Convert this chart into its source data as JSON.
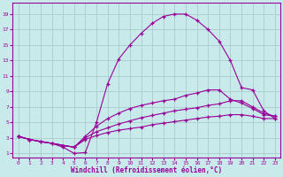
{
  "xlabel": "Windchill (Refroidissement éolien,°C)",
  "bg_color": "#c8eaea",
  "grid_color": "#aacccc",
  "line_color": "#990099",
  "xlim": [
    -0.5,
    23.5
  ],
  "ylim": [
    0.5,
    20.5
  ],
  "xticks": [
    0,
    1,
    2,
    3,
    4,
    5,
    6,
    7,
    8,
    9,
    10,
    11,
    12,
    13,
    14,
    15,
    16,
    17,
    18,
    19,
    20,
    21,
    22,
    23
  ],
  "yticks": [
    1,
    3,
    5,
    7,
    9,
    11,
    13,
    15,
    17,
    19
  ],
  "curve1_x": [
    0,
    1,
    2,
    3,
    4,
    5,
    6,
    7,
    8,
    9,
    10,
    11,
    12,
    13,
    14,
    15,
    16,
    17,
    18,
    19,
    20,
    21,
    22,
    23
  ],
  "curve1_y": [
    3.2,
    2.8,
    2.5,
    2.3,
    1.8,
    1.0,
    1.1,
    5.0,
    10.0,
    13.2,
    15.0,
    16.5,
    17.8,
    18.7,
    19.0,
    19.0,
    18.2,
    17.0,
    15.5,
    13.0,
    9.5,
    9.2,
    6.5,
    5.5
  ],
  "curve2_x": [
    0,
    1,
    2,
    3,
    4,
    5,
    6,
    7,
    8,
    9,
    10,
    11,
    12,
    13,
    14,
    15,
    16,
    17,
    18,
    19,
    20,
    21,
    22,
    23
  ],
  "curve2_y": [
    3.2,
    2.8,
    2.5,
    2.3,
    2.0,
    1.8,
    3.2,
    4.5,
    5.5,
    6.2,
    6.8,
    7.2,
    7.5,
    7.8,
    8.0,
    8.5,
    8.8,
    9.2,
    9.2,
    8.0,
    7.5,
    6.8,
    6.0,
    5.8
  ],
  "curve3_x": [
    0,
    1,
    5,
    6,
    7,
    8,
    9,
    10,
    11,
    12,
    13,
    14,
    15,
    16,
    17,
    18,
    19,
    20,
    21,
    22,
    23
  ],
  "curve3_y": [
    3.2,
    2.8,
    1.8,
    3.0,
    3.8,
    4.3,
    4.8,
    5.2,
    5.6,
    5.9,
    6.2,
    6.5,
    6.7,
    6.9,
    7.2,
    7.4,
    7.8,
    7.8,
    7.0,
    6.2,
    5.8
  ],
  "curve4_x": [
    0,
    1,
    5,
    6,
    7,
    8,
    9,
    10,
    11,
    12,
    13,
    14,
    15,
    16,
    17,
    18,
    19,
    20,
    21,
    22,
    23
  ],
  "curve4_y": [
    3.2,
    2.8,
    1.8,
    2.8,
    3.3,
    3.7,
    4.0,
    4.2,
    4.4,
    4.7,
    4.9,
    5.1,
    5.3,
    5.5,
    5.7,
    5.8,
    6.0,
    6.0,
    5.8,
    5.5,
    5.5
  ]
}
